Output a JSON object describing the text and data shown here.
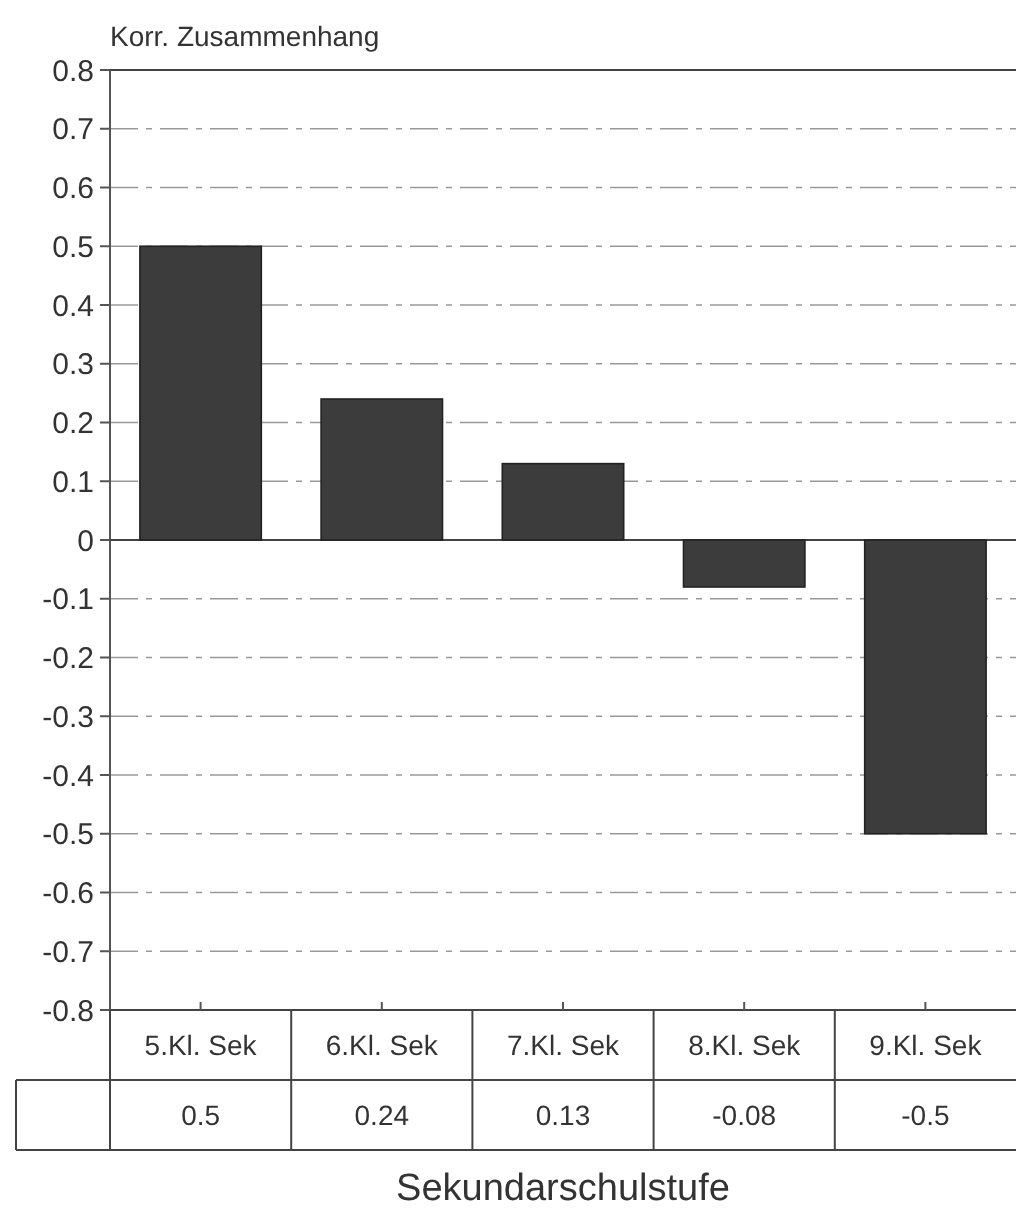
{
  "chart_data": {
    "type": "bar",
    "ylabel": "Korr. Zusammenhang",
    "xlabel": "Sekundarschulstufe",
    "categories": [
      "5.Kl. Sek",
      "6.Kl. Sek",
      "7.Kl. Sek",
      "8.Kl. Sek",
      "9.Kl. Sek"
    ],
    "values": [
      0.5,
      0.24,
      0.13,
      -0.08,
      -0.5
    ],
    "color": "#3c3c3c",
    "ylim": [
      -0.8,
      0.8
    ],
    "yticks": [
      -0.8,
      -0.7,
      -0.6,
      -0.5,
      -0.4,
      -0.3,
      -0.2,
      -0.1,
      0,
      0.1,
      0.2,
      0.3,
      0.4,
      0.5,
      0.6,
      0.7,
      0.8
    ],
    "grid": "y",
    "data_labels": true
  }
}
